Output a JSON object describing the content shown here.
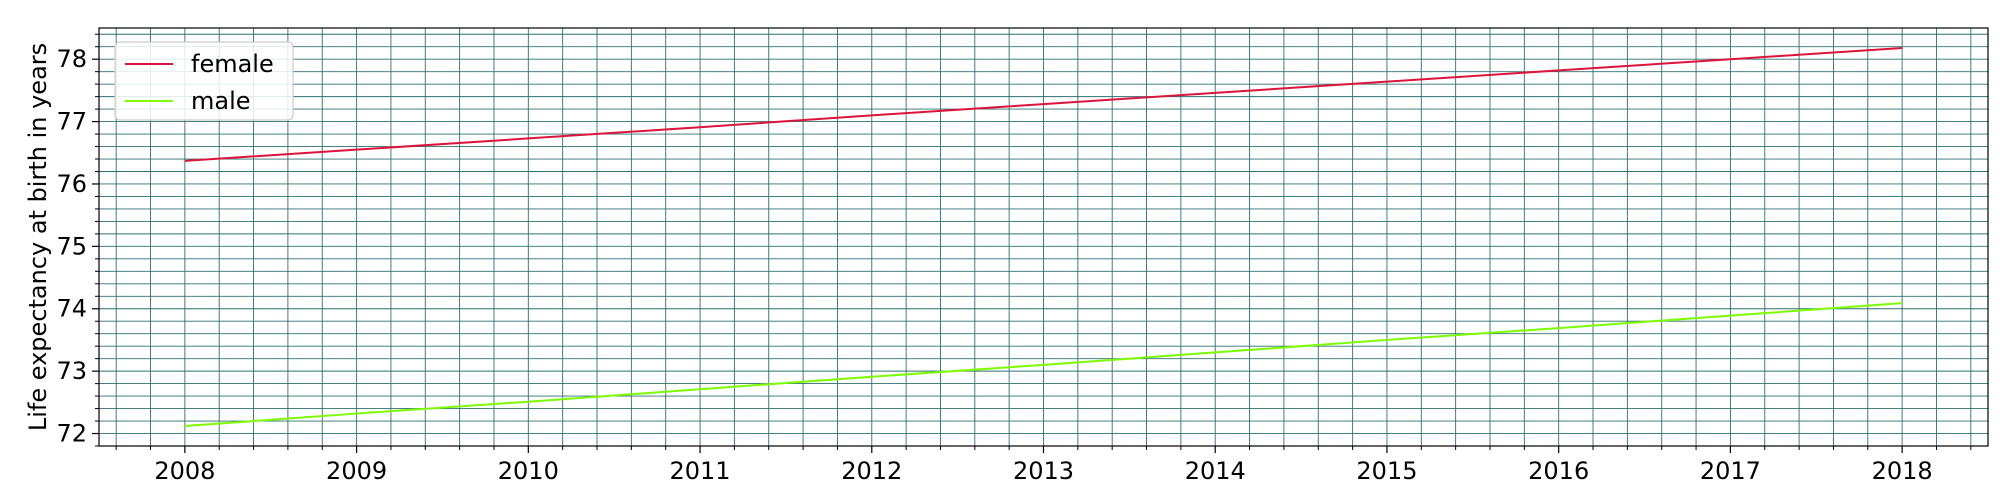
{
  "chart_data": {
    "type": "line",
    "title": "",
    "xlabel": "",
    "ylabel": "Life expectancy at birth in years",
    "x": [
      2008,
      2009,
      2010,
      2011,
      2012,
      2013,
      2014,
      2015,
      2016,
      2017,
      2018
    ],
    "xlim": [
      2007.5,
      2018.5
    ],
    "ylim": [
      71.8,
      78.5
    ],
    "xticks": [
      "2008",
      "2009",
      "2010",
      "2011",
      "2012",
      "2013",
      "2014",
      "2015",
      "2016",
      "2017",
      "2018"
    ],
    "yticks": [
      "72",
      "73",
      "74",
      "75",
      "76",
      "77",
      "78"
    ],
    "grid": true,
    "minor_grid": true,
    "legend_position": "top-left",
    "series": [
      {
        "name": "female",
        "color": "#dc143c",
        "values": [
          76.37,
          76.55,
          76.73,
          76.91,
          77.1,
          77.28,
          77.46,
          77.64,
          77.82,
          78.0,
          78.18
        ]
      },
      {
        "name": "male",
        "color": "#7cfc00",
        "values": [
          72.12,
          72.32,
          72.51,
          72.71,
          72.91,
          73.1,
          73.3,
          73.5,
          73.69,
          73.89,
          74.09
        ]
      }
    ]
  }
}
